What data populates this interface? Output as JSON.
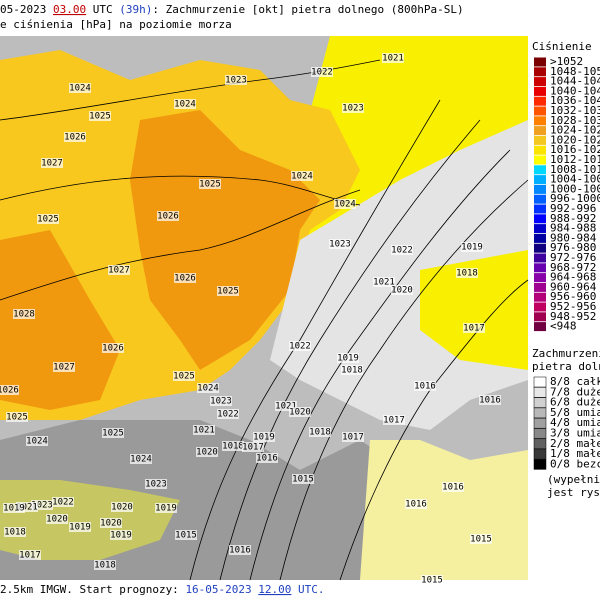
{
  "header": {
    "line1": {
      "date": "05-2023",
      "time": "03.00",
      "utc": "UTC",
      "lead": "(39h)",
      "title": ": Zachmurzenie [okt] pietra dolnego (800hPa-SL)"
    },
    "line2": "e ciśnienia [hPa] na poziomie morza"
  },
  "footer": {
    "text": "2.5km IMGW. Start prognozy: ",
    "date": "16-05-2023",
    "time": "12.00",
    "utc": "UTC."
  },
  "pressure_legend": {
    "title": "Ciśnienie [hP",
    "items": [
      {
        "label": ">1052",
        "color": "#7a0000"
      },
      {
        "label": "1048-105",
        "color": "#a80000"
      },
      {
        "label": "1044-104",
        "color": "#cc0000"
      },
      {
        "label": "1040-104",
        "color": "#e80000"
      },
      {
        "label": "1036-104",
        "color": "#ff2a00"
      },
      {
        "label": "1032-103",
        "color": "#ff5500"
      },
      {
        "label": "1028-103",
        "color": "#ff8000"
      },
      {
        "label": "1024-102",
        "color": "#f0a020"
      },
      {
        "label": "1020-102",
        "color": "#f5c820"
      },
      {
        "label": "1016-102",
        "color": "#fbe400"
      },
      {
        "label": "1012-101",
        "color": "#ffff00"
      },
      {
        "label": "1008-101",
        "color": "#00d8ff"
      },
      {
        "label": "1004-100",
        "color": "#00b0ff"
      },
      {
        "label": "1000-100",
        "color": "#0088ff"
      },
      {
        "label": "996-1000",
        "color": "#0060ff"
      },
      {
        "label": "992-996",
        "color": "#0030ff"
      },
      {
        "label": "988-992",
        "color": "#0000ff"
      },
      {
        "label": "984-988",
        "color": "#0000c8"
      },
      {
        "label": "980-984",
        "color": "#0000a0"
      },
      {
        "label": "976-980",
        "color": "#100080"
      },
      {
        "label": "972-976",
        "color": "#4000a0"
      },
      {
        "label": "968-972",
        "color": "#6800b0"
      },
      {
        "label": "964-968",
        "color": "#8800a8"
      },
      {
        "label": "960-964",
        "color": "#a00090"
      },
      {
        "label": "956-960",
        "color": "#b40078"
      },
      {
        "label": "952-956",
        "color": "#c00060"
      },
      {
        "label": "948-952",
        "color": "#a00050"
      },
      {
        "label": "<948",
        "color": "#700040"
      }
    ]
  },
  "cloud_legend": {
    "title1": "Zachmurzenie",
    "title2": "pietra dolneg",
    "items": [
      {
        "label": "8/8 całkow",
        "color": "#ffffff"
      },
      {
        "label": "7/8 duże",
        "color": "#e8e8e8"
      },
      {
        "label": "6/8 duże",
        "color": "#d0d0d0"
      },
      {
        "label": "5/8 umiarn",
        "color": "#b8b8b8"
      },
      {
        "label": "4/8 umiarn",
        "color": "#a0a0a0"
      },
      {
        "label": "3/8 umiarn",
        "color": "#888888"
      },
      {
        "label": "2/8 małe",
        "color": "#606060"
      },
      {
        "label": "1/8 małe",
        "color": "#383838"
      },
      {
        "label": "0/8 bezchm",
        "color": "#000000"
      }
    ],
    "note1": "(wypełnieni",
    "note2": "jest rysowa"
  },
  "map": {
    "isobar_labels": [
      "1024",
      "1023",
      "1022",
      "1021",
      "1024",
      "1023",
      "1025",
      "1026",
      "1027",
      "1025",
      "1024",
      "1024",
      "1025",
      "1026",
      "1023",
      "1022",
      "1019",
      "1027",
      "1026",
      "1018",
      "1021",
      "1020",
      "1025",
      "1028",
      "1017",
      "1022",
      "1026",
      "1019",
      "1018",
      "1027",
      "1016",
      "1025",
      "1024",
      "1026",
      "1016",
      "1023",
      "1022",
      "1021",
      "1020",
      "1025",
      "1017",
      "1025",
      "1021",
      "1019",
      "1018",
      "1017",
      "1024",
      "1018",
      "1017",
      "1020",
      "1016",
      "1024",
      "1015",
      "1023",
      "1016",
      "1016",
      "1022",
      "1023",
      "1021",
      "1019",
      "1020",
      "1019",
      "1020",
      "1019",
      "1018",
      "1020",
      "1019",
      "1015",
      "1015",
      "1016",
      "1018",
      "1017",
      "1015"
    ]
  }
}
